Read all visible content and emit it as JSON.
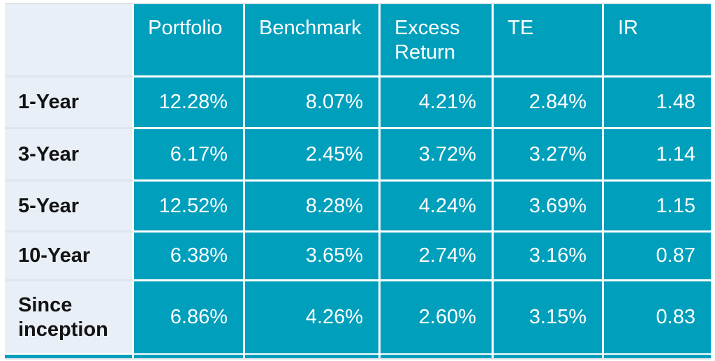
{
  "chart_data": {
    "type": "table",
    "title": "",
    "columns": [
      "",
      "Portfolio",
      "Benchmark",
      "Excess Return",
      "TE",
      "IR"
    ],
    "rows": [
      {
        "label": "1-Year",
        "values": [
          "12.28%",
          "8.07%",
          "4.21%",
          "2.84%",
          "1.48"
        ]
      },
      {
        "label": "3-Year",
        "values": [
          "6.17%",
          "2.45%",
          "3.72%",
          "3.27%",
          "1.14"
        ]
      },
      {
        "label": "5-Year",
        "values": [
          "12.52%",
          "8.28%",
          "4.24%",
          "3.69%",
          "1.15"
        ]
      },
      {
        "label": "10-Year",
        "values": [
          "6.38%",
          "3.65%",
          "2.74%",
          "3.16%",
          "0.87"
        ]
      },
      {
        "label": "Since inception",
        "values": [
          "6.86%",
          "4.26%",
          "2.60%",
          "3.15%",
          "0.83"
        ]
      }
    ]
  },
  "colors": {
    "cell_teal": "#009fbc",
    "label_column_bg": "#e9eff7",
    "gridline_white": "#ffffff",
    "label_divider_gray": "#dfe5ec",
    "label_text": "#131313",
    "value_text": "#ffffff"
  }
}
